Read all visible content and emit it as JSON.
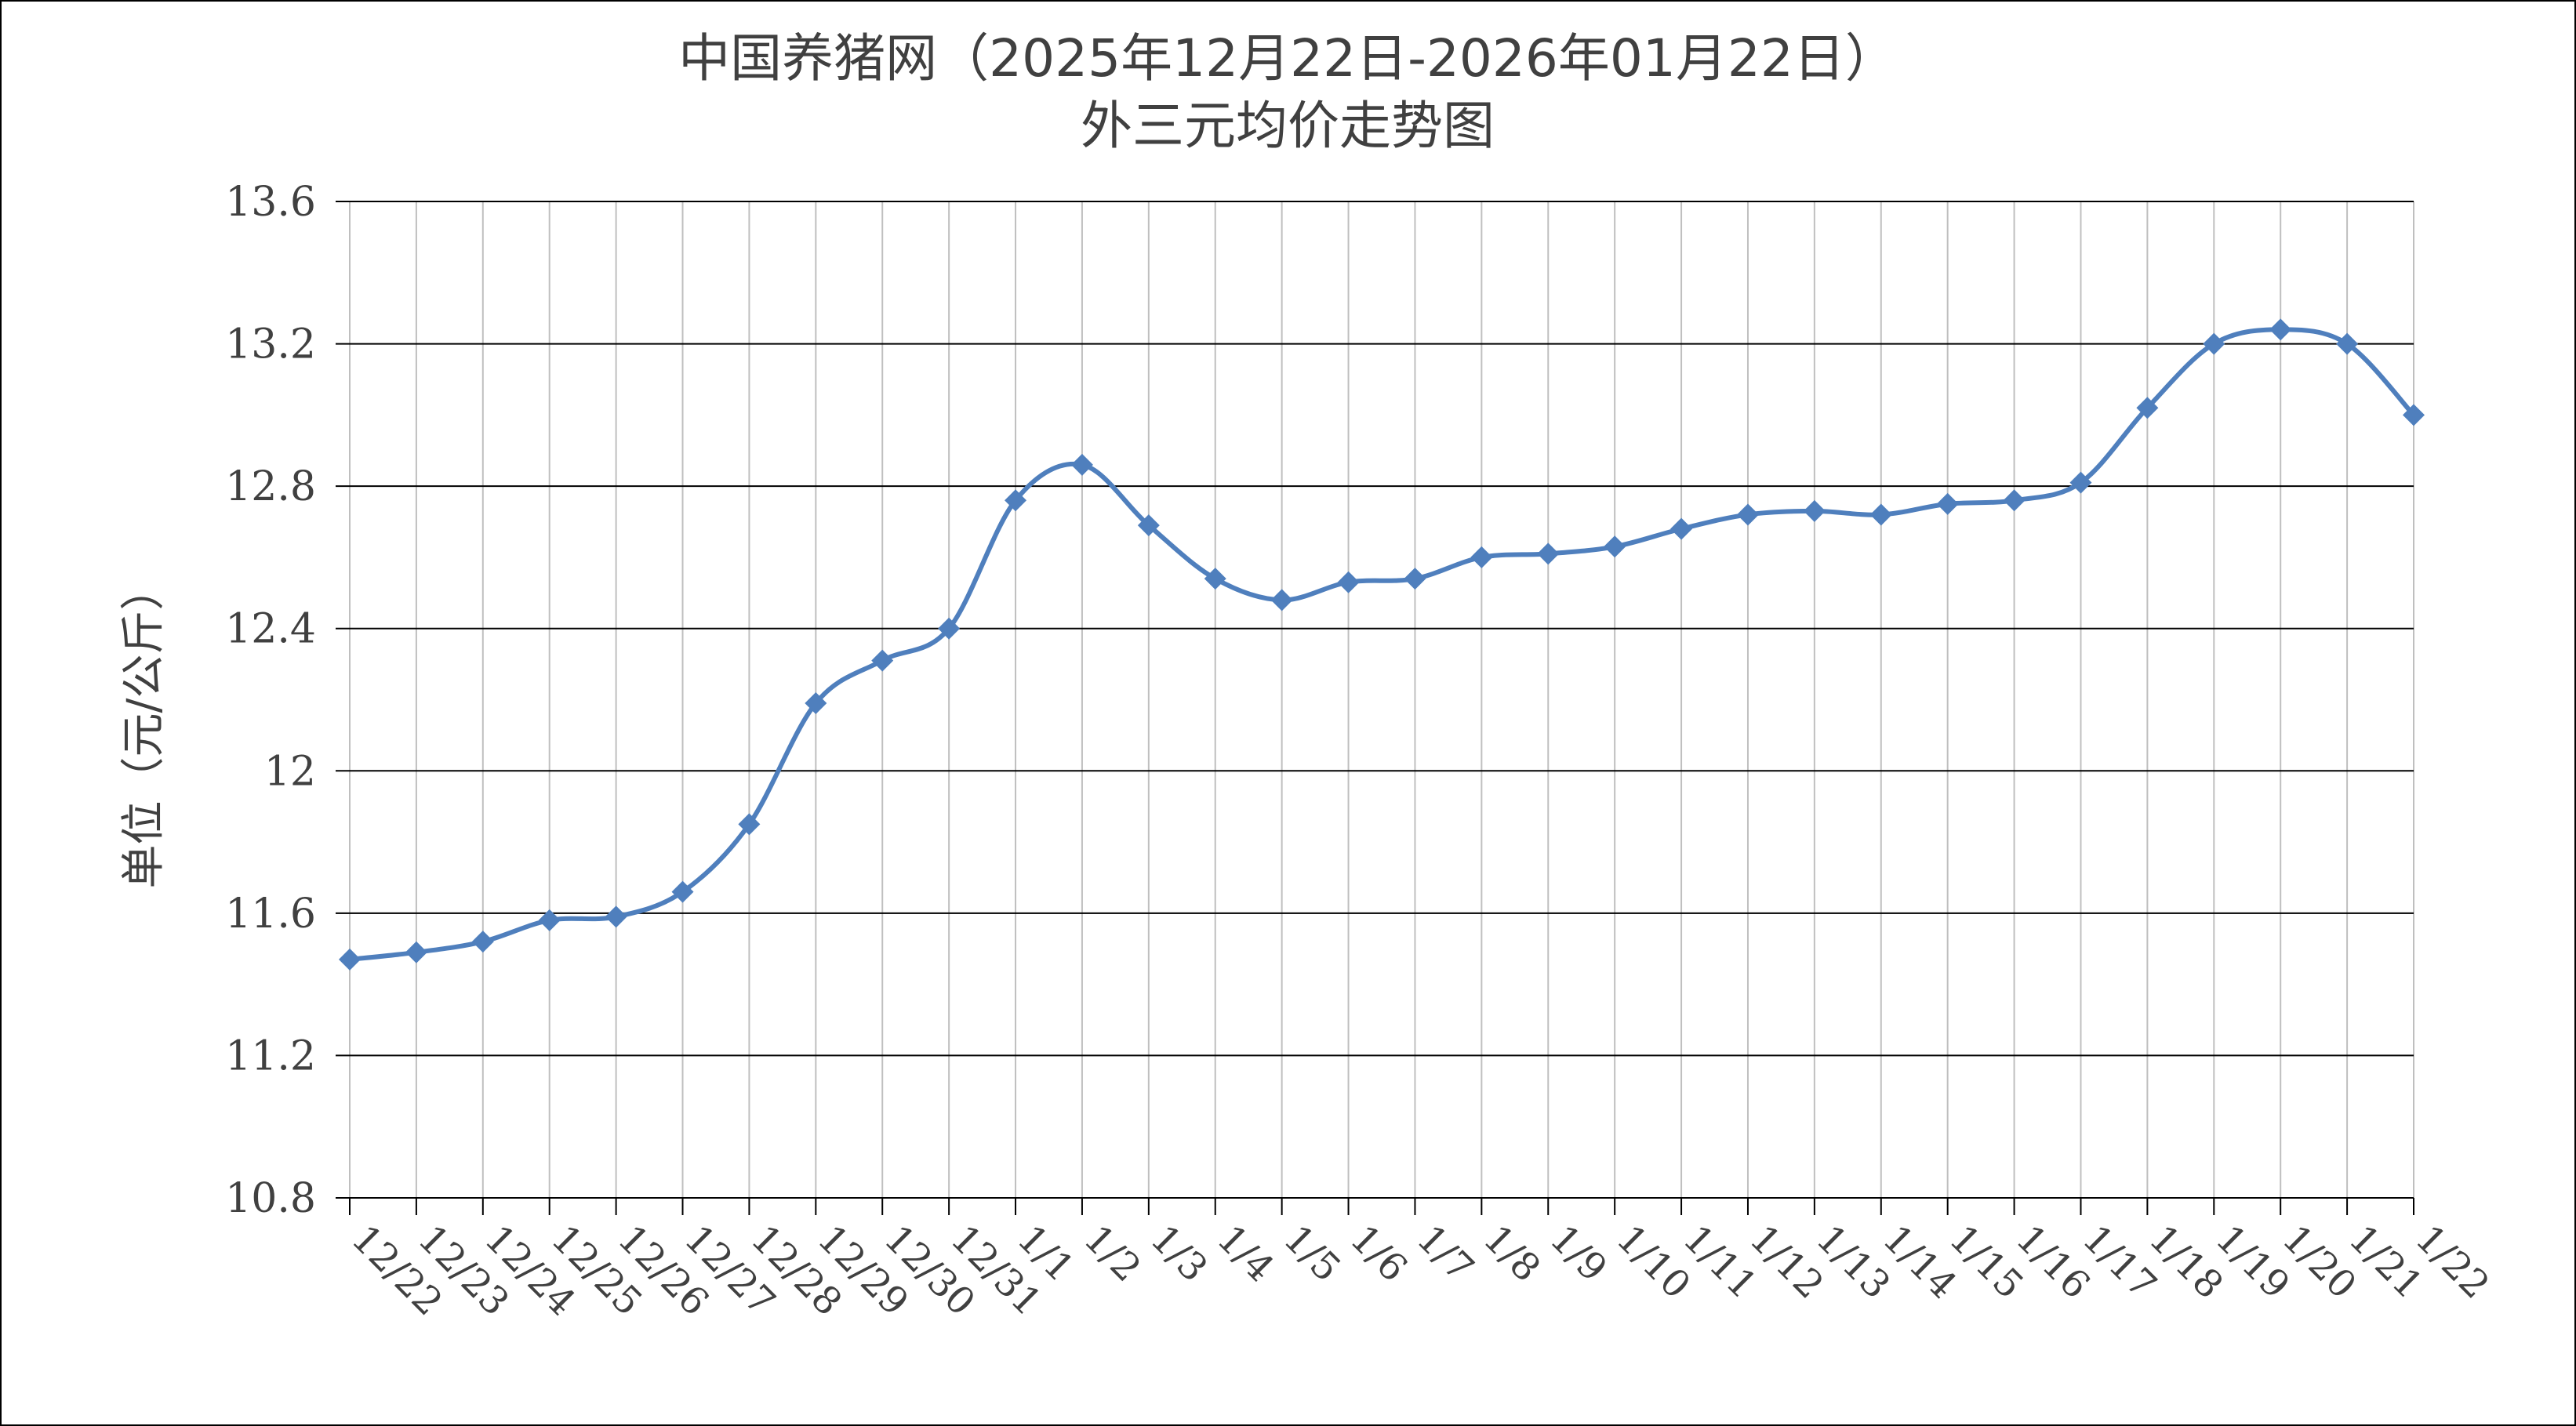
{
  "chart_data": {
    "type": "line",
    "title": "中国养猪网（2025年12月22日-2026年01月22日）",
    "subtitle": "外三元均价走势图",
    "xlabel": "",
    "ylabel": "单位（元/公斤）",
    "ylim": [
      10.8,
      13.6
    ],
    "yticks": [
      "10.8",
      "11.2",
      "11.6",
      "12",
      "12.4",
      "12.8",
      "13.2",
      "13.6"
    ],
    "grid": true,
    "legend": "none",
    "line_color": "#4f7fbd",
    "categories": [
      "12/22",
      "12/23",
      "12/24",
      "12/25",
      "12/26",
      "12/27",
      "12/28",
      "12/29",
      "12/30",
      "12/31",
      "1/1",
      "1/2",
      "1/3",
      "1/4",
      "1/5",
      "1/6",
      "1/7",
      "1/8",
      "1/9",
      "1/10",
      "1/11",
      "1/12",
      "1/13",
      "1/14",
      "1/15",
      "1/16",
      "1/17",
      "1/18",
      "1/19",
      "1/20",
      "1/21",
      "1/22"
    ],
    "values": [
      11.47,
      11.49,
      11.52,
      11.58,
      11.59,
      11.66,
      11.85,
      12.19,
      12.31,
      12.4,
      12.76,
      12.86,
      12.69,
      12.54,
      12.48,
      12.53,
      12.54,
      12.6,
      12.61,
      12.63,
      12.68,
      12.72,
      12.73,
      12.72,
      12.75,
      12.76,
      12.81,
      13.02,
      13.2,
      13.24,
      13.2,
      13.0
    ]
  }
}
